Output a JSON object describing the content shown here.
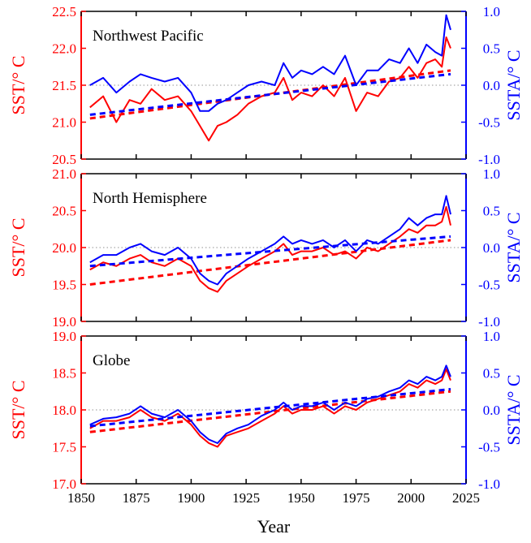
{
  "colors": {
    "sst": "#ff0000",
    "ssta": "#0000ff",
    "axis": "#000000",
    "zero_line": "#a8a8a8"
  },
  "xaxis": {
    "label": "Year",
    "range": [
      1850,
      2025
    ],
    "ticks": [
      1850,
      1875,
      1900,
      1925,
      1950,
      1975,
      2000,
      2025
    ]
  },
  "chart_data": [
    {
      "type": "line",
      "title": "Northwest Pacific",
      "ylabel_left": "SST/° C",
      "ylabel_right": "SSTA/° C",
      "ylim_left": [
        20.5,
        22.5
      ],
      "ylim_right": [
        -1.0,
        1.0
      ],
      "yticks_left": [
        "20.5",
        "21.0",
        "21.5",
        "22.0",
        "22.5"
      ],
      "yticks_right": [
        "-1.0",
        "-0.5",
        "0.0",
        "0.5",
        "1.0"
      ],
      "legend": "none",
      "grid": false,
      "x": [
        1854,
        1860,
        1866,
        1872,
        1877,
        1882,
        1888,
        1894,
        1900,
        1904,
        1908,
        1912,
        1916,
        1921,
        1926,
        1932,
        1938,
        1942,
        1946,
        1950,
        1955,
        1960,
        1965,
        1970,
        1975,
        1980,
        1985,
        1990,
        1995,
        1999,
        2003,
        2007,
        2011,
        2014,
        2016,
        2018
      ],
      "series": [
        {
          "values": [
            21.2,
            21.35,
            21.0,
            21.3,
            21.25,
            21.45,
            21.3,
            21.35,
            21.15,
            20.95,
            20.75,
            20.95,
            21.0,
            21.1,
            21.25,
            21.35,
            21.4,
            21.6,
            21.3,
            21.4,
            21.35,
            21.5,
            21.35,
            21.6,
            21.15,
            21.4,
            21.35,
            21.55,
            21.6,
            21.75,
            21.6,
            21.8,
            21.85,
            21.75,
            22.15,
            22.0
          ],
          "trend": [
            21.05,
            21.7
          ]
        },
        {
          "values": [
            0.0,
            0.1,
            -0.1,
            0.05,
            0.15,
            0.1,
            0.05,
            0.1,
            -0.1,
            -0.35,
            -0.35,
            -0.25,
            -0.2,
            -0.1,
            0.0,
            0.05,
            0.0,
            0.3,
            0.1,
            0.2,
            0.15,
            0.25,
            0.15,
            0.4,
            0.0,
            0.2,
            0.2,
            0.35,
            0.3,
            0.5,
            0.3,
            0.55,
            0.45,
            0.4,
            0.95,
            0.75
          ],
          "trend": [
            -0.4,
            0.15
          ]
        }
      ]
    },
    {
      "type": "line",
      "title": "North Hemisphere",
      "ylabel_left": "SST/° C",
      "ylabel_right": "SSTA/° C",
      "ylim_left": [
        19.0,
        21.0
      ],
      "ylim_right": [
        -1.0,
        1.0
      ],
      "yticks_left": [
        "19.0",
        "19.5",
        "20.0",
        "20.5",
        "21.0"
      ],
      "yticks_right": [
        "-1.0",
        "-0.5",
        "0.0",
        "0.5",
        "1.0"
      ],
      "legend": "none",
      "grid": false,
      "x": [
        1854,
        1860,
        1866,
        1872,
        1877,
        1882,
        1888,
        1894,
        1900,
        1904,
        1908,
        1912,
        1916,
        1921,
        1926,
        1932,
        1938,
        1942,
        1946,
        1950,
        1955,
        1960,
        1965,
        1970,
        1975,
        1980,
        1985,
        1990,
        1995,
        1999,
        2003,
        2007,
        2011,
        2014,
        2016,
        2018
      ],
      "series": [
        {
          "values": [
            19.7,
            19.8,
            19.75,
            19.85,
            19.9,
            19.8,
            19.75,
            19.85,
            19.75,
            19.55,
            19.45,
            19.4,
            19.55,
            19.65,
            19.75,
            19.85,
            19.95,
            20.05,
            19.9,
            19.95,
            19.95,
            20.0,
            19.9,
            19.95,
            19.85,
            20.0,
            19.95,
            20.05,
            20.15,
            20.25,
            20.2,
            20.3,
            20.3,
            20.35,
            20.55,
            20.3
          ],
          "trend": [
            19.5,
            20.1
          ]
        },
        {
          "values": [
            -0.2,
            -0.1,
            -0.1,
            0.0,
            0.05,
            -0.05,
            -0.1,
            0.0,
            -0.15,
            -0.35,
            -0.45,
            -0.5,
            -0.35,
            -0.25,
            -0.15,
            -0.05,
            0.05,
            0.15,
            0.05,
            0.1,
            0.05,
            0.1,
            0.0,
            0.1,
            -0.05,
            0.1,
            0.05,
            0.15,
            0.25,
            0.4,
            0.3,
            0.4,
            0.45,
            0.45,
            0.7,
            0.45
          ],
          "trend": [
            -0.25,
            0.15
          ]
        }
      ]
    },
    {
      "type": "line",
      "title": "Globe",
      "ylabel_left": "SST/° C",
      "ylabel_right": "SSTA/° C",
      "ylim_left": [
        17.0,
        19.0
      ],
      "ylim_right": [
        -1.0,
        1.0
      ],
      "yticks_left": [
        "17.0",
        "17.5",
        "18.0",
        "18.5",
        "19.0"
      ],
      "yticks_right": [
        "-1.0",
        "-0.5",
        "0.0",
        "0.5",
        "1.0"
      ],
      "legend": "none",
      "grid": false,
      "x": [
        1854,
        1860,
        1866,
        1872,
        1877,
        1882,
        1888,
        1894,
        1900,
        1904,
        1908,
        1912,
        1916,
        1921,
        1926,
        1932,
        1938,
        1942,
        1946,
        1950,
        1955,
        1960,
        1965,
        1970,
        1975,
        1980,
        1985,
        1990,
        1995,
        1999,
        2003,
        2007,
        2011,
        2014,
        2016,
        2018
      ],
      "series": [
        {
          "values": [
            17.75,
            17.85,
            17.85,
            17.9,
            18.0,
            17.9,
            17.85,
            17.95,
            17.8,
            17.65,
            17.55,
            17.5,
            17.65,
            17.7,
            17.75,
            17.85,
            17.95,
            18.05,
            17.95,
            18.0,
            18.0,
            18.05,
            17.95,
            18.05,
            18.0,
            18.1,
            18.15,
            18.2,
            18.25,
            18.35,
            18.3,
            18.4,
            18.35,
            18.4,
            18.55,
            18.4
          ],
          "trend": [
            17.7,
            18.25
          ]
        },
        {
          "values": [
            -0.2,
            -0.12,
            -0.1,
            -0.05,
            0.05,
            -0.05,
            -0.1,
            0.0,
            -0.15,
            -0.3,
            -0.4,
            -0.45,
            -0.32,
            -0.25,
            -0.2,
            -0.08,
            0.0,
            0.1,
            0.0,
            0.05,
            0.05,
            0.1,
            0.0,
            0.1,
            0.05,
            0.15,
            0.18,
            0.25,
            0.3,
            0.4,
            0.35,
            0.45,
            0.4,
            0.45,
            0.6,
            0.45
          ],
          "trend": [
            -0.22,
            0.28
          ]
        }
      ]
    }
  ]
}
